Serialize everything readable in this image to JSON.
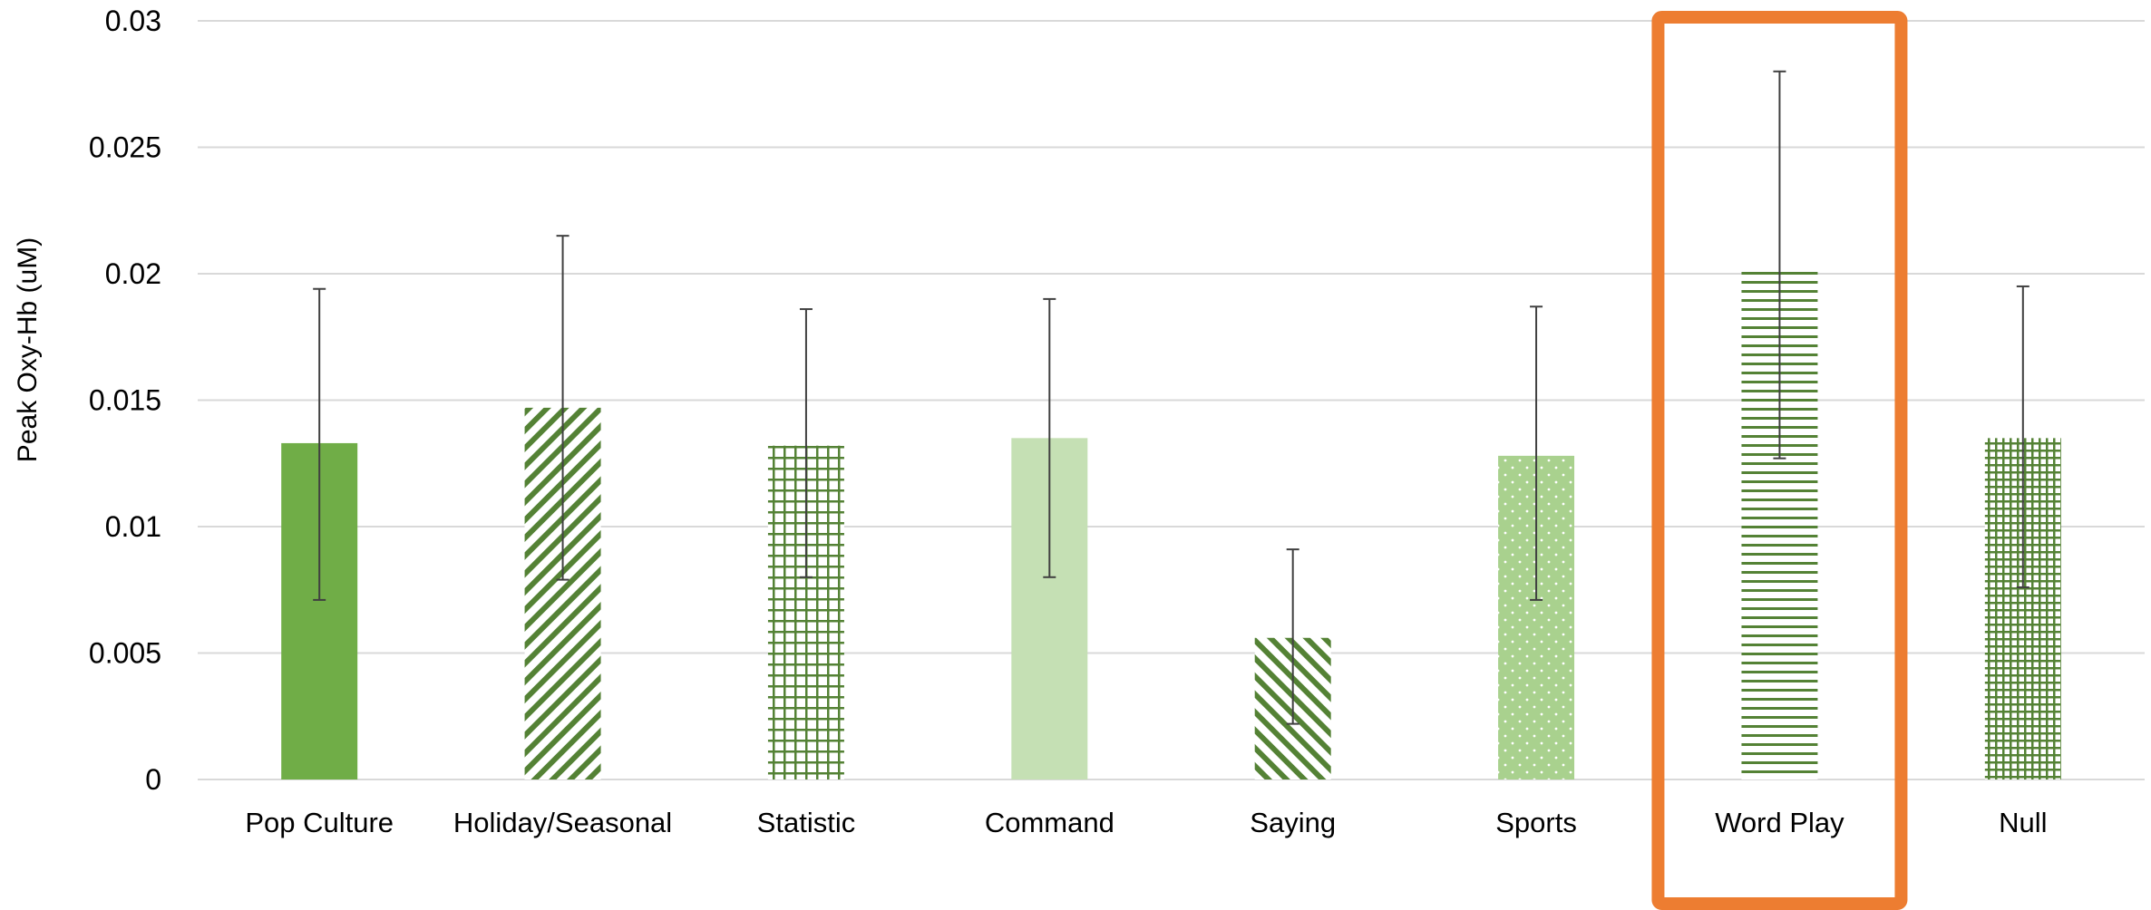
{
  "chart_data": {
    "type": "bar",
    "title": "",
    "xlabel": "",
    "ylabel": "Peak Oxy-Hb (uM)",
    "ylim": [
      0,
      0.03
    ],
    "yticks": [
      {
        "value": 0,
        "label": "0"
      },
      {
        "value": 0.005,
        "label": "0.005"
      },
      {
        "value": 0.01,
        "label": "0.01"
      },
      {
        "value": 0.015,
        "label": "0.015"
      },
      {
        "value": 0.02,
        "label": "0.02"
      },
      {
        "value": 0.025,
        "label": "0.025"
      },
      {
        "value": 0.03,
        "label": "0.03"
      }
    ],
    "grid": true,
    "legend": "none",
    "categories": [
      "Pop Culture",
      "Holiday/Seasonal",
      "Statistic",
      "Command",
      "Saying",
      "Sports",
      "Word Play",
      "Null"
    ],
    "values": [
      0.0133,
      0.0147,
      0.0132,
      0.0135,
      0.0056,
      0.0128,
      0.0201,
      0.0135
    ],
    "error_low": [
      0.0071,
      0.0079,
      0.008,
      0.008,
      0.0022,
      0.0071,
      0.0127,
      0.0076
    ],
    "error_high": [
      0.0194,
      0.0215,
      0.0186,
      0.019,
      0.0091,
      0.0187,
      0.028,
      0.0195
    ],
    "patterns": [
      "solid",
      "diagonal",
      "grid",
      "solid-light",
      "diagonal-reverse",
      "dots",
      "horizontal",
      "grid-dense"
    ],
    "highlight": {
      "category": "Word Play",
      "color": "#ED7D31"
    },
    "colors": {
      "dark_green": "#70AD47",
      "pattern_green": "#548235",
      "light_green": "#C5E0B4",
      "medium_green": "#A9D18E",
      "error_bar": "#404040",
      "grid": "#D9D9D9",
      "axis": "#D9D9D9",
      "text": "#000000"
    }
  }
}
